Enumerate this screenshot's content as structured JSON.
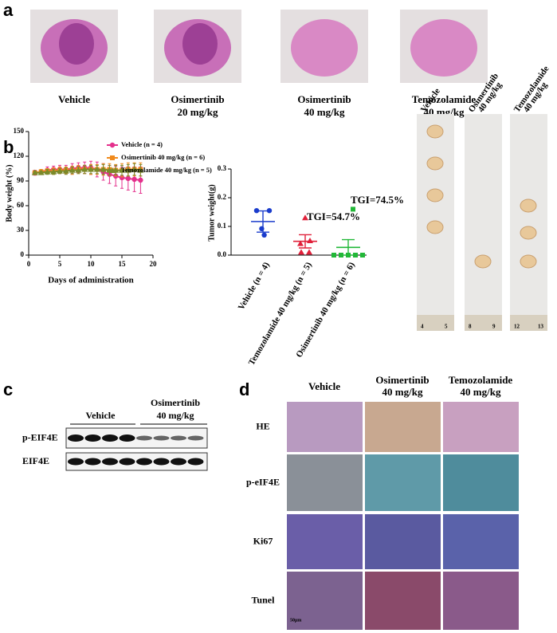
{
  "panel_labels": [
    "a",
    "b",
    "c",
    "d"
  ],
  "panel_a": {
    "captions": [
      [
        "Vehicle"
      ],
      [
        "Osimertinib",
        "20 mg/kg"
      ],
      [
        "Osimertinib",
        "40 mg/kg"
      ],
      [
        "Temozolamide",
        "40 mg/kg"
      ]
    ]
  },
  "chart_data": [
    {
      "type": "line",
      "xlabel": "Days of administration",
      "ylabel": "Body weight (%)",
      "x": [
        1,
        2,
        3,
        4,
        5,
        6,
        7,
        8,
        9,
        10,
        11,
        12,
        13,
        14,
        15,
        16,
        17,
        18
      ],
      "xlim": [
        0,
        20
      ],
      "xticks": [
        0,
        5,
        10,
        15,
        20
      ],
      "ylim": [
        0,
        150
      ],
      "yticks": [
        0,
        30,
        60,
        90,
        120,
        150
      ],
      "legend": "top-right",
      "series": [
        {
          "name": "Vehicle (n = 4)",
          "color": "#e4308c",
          "marker": "circle",
          "values": [
            100,
            101,
            103,
            104,
            104,
            104,
            105,
            106,
            106,
            106,
            104,
            101,
            98,
            96,
            94,
            93,
            92,
            91
          ],
          "errors": [
            3,
            3,
            4,
            4,
            5,
            5,
            6,
            6,
            7,
            8,
            9,
            10,
            11,
            12,
            13,
            14,
            15,
            16
          ]
        },
        {
          "name": "Osimertinib 40 mg/kg (n = 6)",
          "color": "#f08a1c",
          "marker": "square",
          "values": [
            100,
            101,
            102,
            102,
            103,
            103,
            103,
            104,
            104,
            104,
            104,
            104,
            104,
            103,
            103,
            104,
            104,
            104
          ],
          "errors": [
            2,
            3,
            3,
            4,
            4,
            4,
            5,
            5,
            5,
            6,
            6,
            7,
            7,
            7,
            8,
            8,
            8,
            8
          ]
        },
        {
          "name": "Temozolamide 40 mg/kg (n = 5)",
          "color": "#7a8a2a",
          "marker": "triangle",
          "values": [
            100,
            100,
            101,
            101,
            102,
            102,
            103,
            103,
            104,
            104,
            104,
            104,
            103,
            103,
            103,
            103,
            104,
            103
          ],
          "errors": [
            2,
            2,
            3,
            3,
            3,
            4,
            4,
            4,
            5,
            5,
            5,
            6,
            6,
            6,
            6,
            7,
            7,
            7
          ]
        }
      ]
    },
    {
      "type": "dotplot",
      "ylabel": "Tumor weight(g)",
      "categories": [
        "Vehicle (n = 4)",
        "Temozolamide 40 mg/kg (n = 5)",
        "Osimertinib 40 mg/kg (n = 6)"
      ],
      "colors": [
        "#1a3ccc",
        "#e0203a",
        "#22b838"
      ],
      "markers": [
        "circle",
        "triangle",
        "square"
      ],
      "points": [
        [
          0.155,
          0.155,
          0.092,
          0.07
        ],
        [
          0.13,
          0.05,
          0.04,
          0.01,
          0.01
        ],
        [
          0.16,
          0,
          0,
          0,
          0,
          0
        ]
      ],
      "means": [
        0.117,
        0.048,
        0.027
      ],
      "errors": [
        0.037,
        0.023,
        0.027
      ],
      "ylim": [
        0,
        0.3
      ],
      "yticks": [
        {
          "value": 0,
          "label": "0.0"
        },
        {
          "value": 0.1,
          "label": "0.1"
        },
        {
          "value": 0.2,
          "label": "0.2"
        },
        {
          "value": 0.3,
          "label": "0.3"
        }
      ],
      "annotations": [
        "TGI=54.7%",
        "TGI=74.5%"
      ]
    }
  ],
  "panel_b_photos": {
    "labels": [
      [
        "Vehicle"
      ],
      [
        "Osimertinib",
        "40 mg/kg"
      ],
      [
        "Temozolamide",
        "40 mg/kg"
      ]
    ],
    "ruler": [
      "4",
      "5",
      "8",
      "9",
      "12",
      "13"
    ]
  },
  "panel_c": {
    "groups": [
      [
        "Vehicle"
      ],
      [
        "Osimertinib",
        "40 mg/kg"
      ]
    ],
    "rows": [
      "p-EIF4E",
      "EIF4E"
    ]
  },
  "panel_d": {
    "columns": [
      [
        "Vehicle"
      ],
      [
        "Osimertinib",
        "40 mg/kg"
      ],
      [
        "Temozolamide",
        "40 mg/kg"
      ]
    ],
    "rows": [
      "HE",
      "p-eIF4E",
      "Ki67",
      "Tunel"
    ],
    "scale_bar": "50μm"
  }
}
